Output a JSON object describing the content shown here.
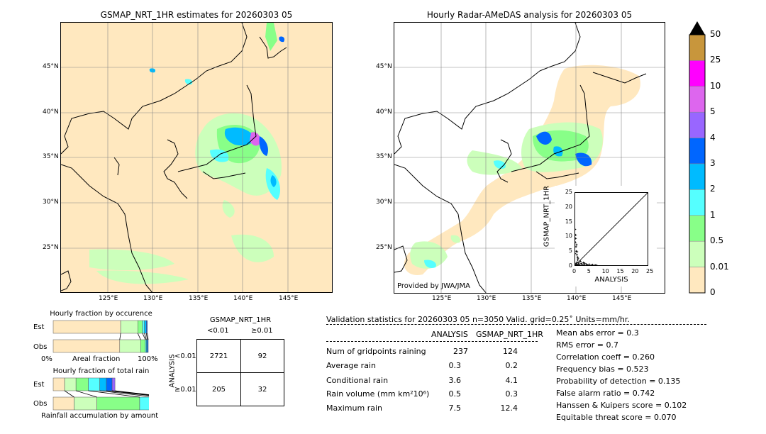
{
  "left_map": {
    "title": "GSMAP_NRT_1HR estimates for 20260303 05",
    "lat_labels": [
      "45°N",
      "40°N",
      "35°N",
      "30°N",
      "25°N"
    ],
    "lon_labels": [
      "125°E",
      "130°E",
      "135°E",
      "140°E",
      "145°E"
    ]
  },
  "right_map": {
    "title": "Hourly Radar-AMeDAS analysis for 20260303 05",
    "lat_labels": [
      "45°N",
      "40°N",
      "35°N",
      "30°N",
      "25°N"
    ],
    "lon_labels": [
      "125°E",
      "130°E",
      "135°E",
      "140°E",
      "145°E"
    ],
    "credit": "Provided by JWA/JMA"
  },
  "colorbar": {
    "labels": [
      "50",
      "25",
      "10",
      "5",
      "4",
      "3",
      "2",
      "1",
      "0.5",
      "0.01",
      "0"
    ],
    "colors": [
      "#c8963c",
      "#ff00ff",
      "#dd66ee",
      "#9966ff",
      "#0066ff",
      "#00bbff",
      "#55ffff",
      "#88ff88",
      "#ccffbb",
      "#ffe8bf"
    ]
  },
  "chart_data": [
    {
      "type": "scatter",
      "ylabel": "GSMAP_NRT_1HR",
      "xlabel": "ANALYSIS",
      "xlim": [
        0,
        25
      ],
      "ylim": [
        0,
        25
      ],
      "xticks": [
        "0",
        "5",
        "10",
        "15",
        "20",
        "25"
      ],
      "yticks": [
        "0",
        "5",
        "10",
        "15",
        "20",
        "25"
      ],
      "points": [
        [
          0.1,
          0.2
        ],
        [
          0.2,
          0.5
        ],
        [
          0.3,
          0.1
        ],
        [
          0.5,
          0.8
        ],
        [
          0.6,
          0.3
        ],
        [
          0.8,
          1.2
        ],
        [
          1.0,
          0.4
        ],
        [
          1.1,
          2.0
        ],
        [
          1.3,
          0.6
        ],
        [
          1.5,
          1.0
        ],
        [
          1.8,
          0.3
        ],
        [
          2.0,
          1.6
        ],
        [
          2.3,
          0.8
        ],
        [
          2.6,
          0.5
        ],
        [
          3.0,
          1.1
        ],
        [
          3.2,
          0.4
        ],
        [
          3.5,
          0.9
        ],
        [
          4.0,
          0.6
        ],
        [
          4.4,
          0.3
        ],
        [
          5.0,
          0.5
        ],
        [
          5.6,
          0.2
        ],
        [
          6.1,
          0.4
        ],
        [
          7.0,
          0.3
        ],
        [
          7.5,
          0.2
        ],
        [
          0.2,
          12.4
        ],
        [
          0.4,
          10.5
        ],
        [
          0.3,
          8.0
        ],
        [
          0.5,
          6.5
        ],
        [
          0.6,
          5.0
        ],
        [
          0.2,
          4.2
        ],
        [
          0.8,
          3.8
        ],
        [
          1.0,
          3.0
        ],
        [
          1.2,
          2.6
        ],
        [
          0.4,
          9.3
        ],
        [
          0.7,
          7.2
        ],
        [
          0.9,
          4.8
        ]
      ]
    },
    {
      "type": "bar",
      "title": "Hourly fraction by occurence",
      "categories": [
        "Est",
        "Obs"
      ],
      "xlabel": "Areal fraction",
      "xmin_label": "0%",
      "xmax_label": "100%",
      "series": [
        {
          "values": [
            0.71,
            0.7
          ]
        },
        {
          "values": [
            0.18,
            0.22
          ]
        },
        {
          "values": [
            0.05,
            0.05
          ]
        },
        {
          "values": [
            0.02,
            0.01
          ]
        },
        {
          "values": [
            0.02,
            0.01
          ]
        },
        {
          "values": [
            0.01,
            0.01
          ]
        }
      ]
    },
    {
      "type": "bar",
      "title": "Hourly fraction of total rain",
      "categories": [
        "Est",
        "Obs"
      ],
      "xlabel": "Rainfall accumulation by amount",
      "series": [
        {
          "values": [
            0.12,
            0.22
          ]
        },
        {
          "values": [
            0.12,
            0.24
          ]
        },
        {
          "values": [
            0.13,
            0.45
          ]
        },
        {
          "values": [
            0.12,
            0.16
          ]
        },
        {
          "values": [
            0.07,
            0.1
          ]
        },
        {
          "values": [
            0.06,
            0.03
          ]
        },
        {
          "values": [
            0.03,
            0.03
          ]
        }
      ]
    },
    {
      "type": "table",
      "title": "GSMAP_NRT_1HR",
      "col_labels": [
        "<0.01",
        "≥0.01"
      ],
      "row_axis": "ANALYSIS",
      "row_labels": [
        "<0.01",
        "≥0.01"
      ],
      "cells": [
        [
          "2721",
          "92"
        ],
        [
          "205",
          "32"
        ]
      ]
    }
  ],
  "validation": {
    "header": "Validation statistics for 20260303 05  n=3050 Valid. grid=0.25˚ Units=mm/hr.",
    "col_analysis": "ANALYSIS",
    "col_gsmap": "GSMAP_NRT_1HR",
    "rows": [
      {
        "label": "Num of gridpoints raining",
        "analysis": "237",
        "gsmap": "124"
      },
      {
        "label": "Average rain",
        "analysis": "0.3",
        "gsmap": "0.2"
      },
      {
        "label": "Conditional rain",
        "analysis": "3.6",
        "gsmap": "4.1"
      },
      {
        "label": "Rain volume (mm km²10⁶)",
        "analysis": "0.5",
        "gsmap": "0.3"
      },
      {
        "label": "Maximum rain",
        "analysis": "7.5",
        "gsmap": "12.4"
      }
    ],
    "scores": [
      "Mean abs error =    0.3",
      "RMS error =    0.7",
      "Correlation coeff =  0.260",
      "Frequency bias =  0.523",
      "Probability of detection =  0.135",
      "False alarm ratio =  0.742",
      "Hanssen & Kuipers score =  0.102",
      "Equitable threat score =  0.070"
    ]
  }
}
